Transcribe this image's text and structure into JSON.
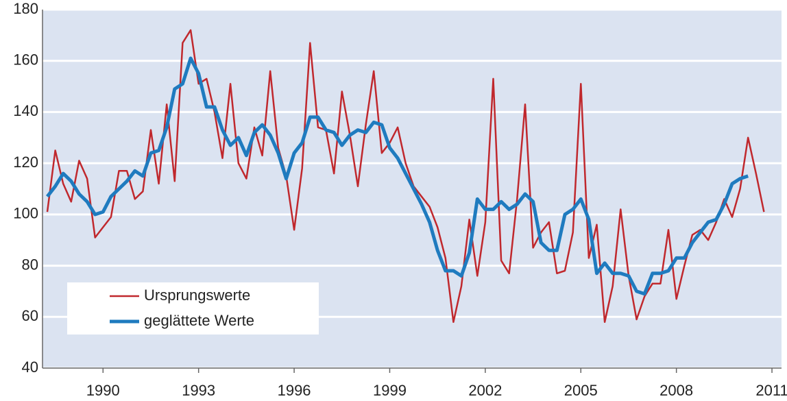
{
  "chart_data": {
    "type": "line",
    "x": [
      1988.25,
      1988.5,
      1988.75,
      1989,
      1989.25,
      1989.5,
      1989.75,
      1990,
      1990.25,
      1990.5,
      1990.75,
      1991,
      1991.25,
      1991.5,
      1991.75,
      1992,
      1992.25,
      1992.5,
      1992.75,
      1993,
      1993.25,
      1993.5,
      1993.75,
      1994,
      1994.25,
      1994.5,
      1994.75,
      1995,
      1995.25,
      1995.5,
      1995.75,
      1996,
      1996.25,
      1996.5,
      1996.75,
      1997,
      1997.25,
      1997.5,
      1997.75,
      1998,
      1998.25,
      1998.5,
      1998.75,
      1999,
      1999.25,
      1999.5,
      1999.75,
      2000,
      2000.25,
      2000.5,
      2000.75,
      2001,
      2001.25,
      2001.5,
      2001.75,
      2002,
      2002.25,
      2002.5,
      2002.75,
      2003,
      2003.25,
      2003.5,
      2003.75,
      2004,
      2004.25,
      2004.5,
      2004.75,
      2005,
      2005.25,
      2005.5,
      2005.75,
      2006,
      2006.25,
      2006.5,
      2006.75,
      2007,
      2007.25,
      2007.5,
      2007.75,
      2008,
      2008.25,
      2008.5,
      2008.75,
      2009,
      2009.25,
      2009.5,
      2009.75,
      2010,
      2010.25,
      2010.5,
      2010.75
    ],
    "series": [
      {
        "name": "Ursprungswerte",
        "color": "#c0282d",
        "width": 2.5,
        "values": [
          101,
          125,
          112,
          105,
          121,
          114,
          91,
          95,
          99,
          117,
          117,
          106,
          109,
          133,
          112,
          143,
          113,
          167,
          172,
          151,
          153,
          140,
          122,
          151,
          120,
          114,
          134,
          123,
          156,
          126,
          115,
          94,
          118,
          167,
          134,
          133,
          116,
          148,
          131,
          111,
          135,
          156,
          124,
          128,
          134,
          120,
          111,
          107,
          103,
          95,
          83,
          58,
          72,
          98,
          76,
          97,
          153,
          82,
          77,
          106,
          143,
          87,
          93,
          97,
          77,
          78,
          93,
          151,
          83,
          96,
          58,
          72,
          102,
          76,
          59,
          68,
          73,
          73,
          94,
          67,
          80,
          92,
          94,
          90,
          97,
          106,
          99,
          110,
          130,
          116,
          101
        ]
      },
      {
        "name": "geglättete Werte",
        "color": "#1f7bbf",
        "width": 5,
        "values": [
          107,
          111,
          116,
          113,
          108,
          105,
          100,
          101,
          107,
          110,
          113,
          117,
          115,
          124,
          125,
          134,
          149,
          151,
          161,
          155,
          142,
          142,
          133,
          127,
          130,
          123,
          132,
          135,
          131,
          124,
          114,
          124,
          128,
          138,
          138,
          133,
          132,
          127,
          131,
          133,
          132,
          136,
          135,
          126,
          122,
          116,
          110,
          104,
          97,
          86,
          78,
          78,
          76,
          85,
          106,
          102,
          102,
          105,
          102,
          104,
          108,
          105,
          89,
          86,
          86,
          100,
          102,
          106,
          98,
          77,
          81,
          77,
          77,
          76,
          70,
          69,
          77,
          77,
          78,
          83,
          83,
          89,
          93,
          97,
          98,
          104,
          112,
          114,
          115,
          null,
          null
        ]
      }
    ],
    "xlim": [
      1988.1,
      2011.3
    ],
    "xticks": [
      1990,
      1993,
      1996,
      1999,
      2002,
      2005,
      2008,
      2011
    ],
    "ylim": [
      40,
      180
    ],
    "yticks": [
      40,
      60,
      80,
      100,
      120,
      140,
      160,
      180
    ],
    "grid": true,
    "legend": "lower left"
  }
}
